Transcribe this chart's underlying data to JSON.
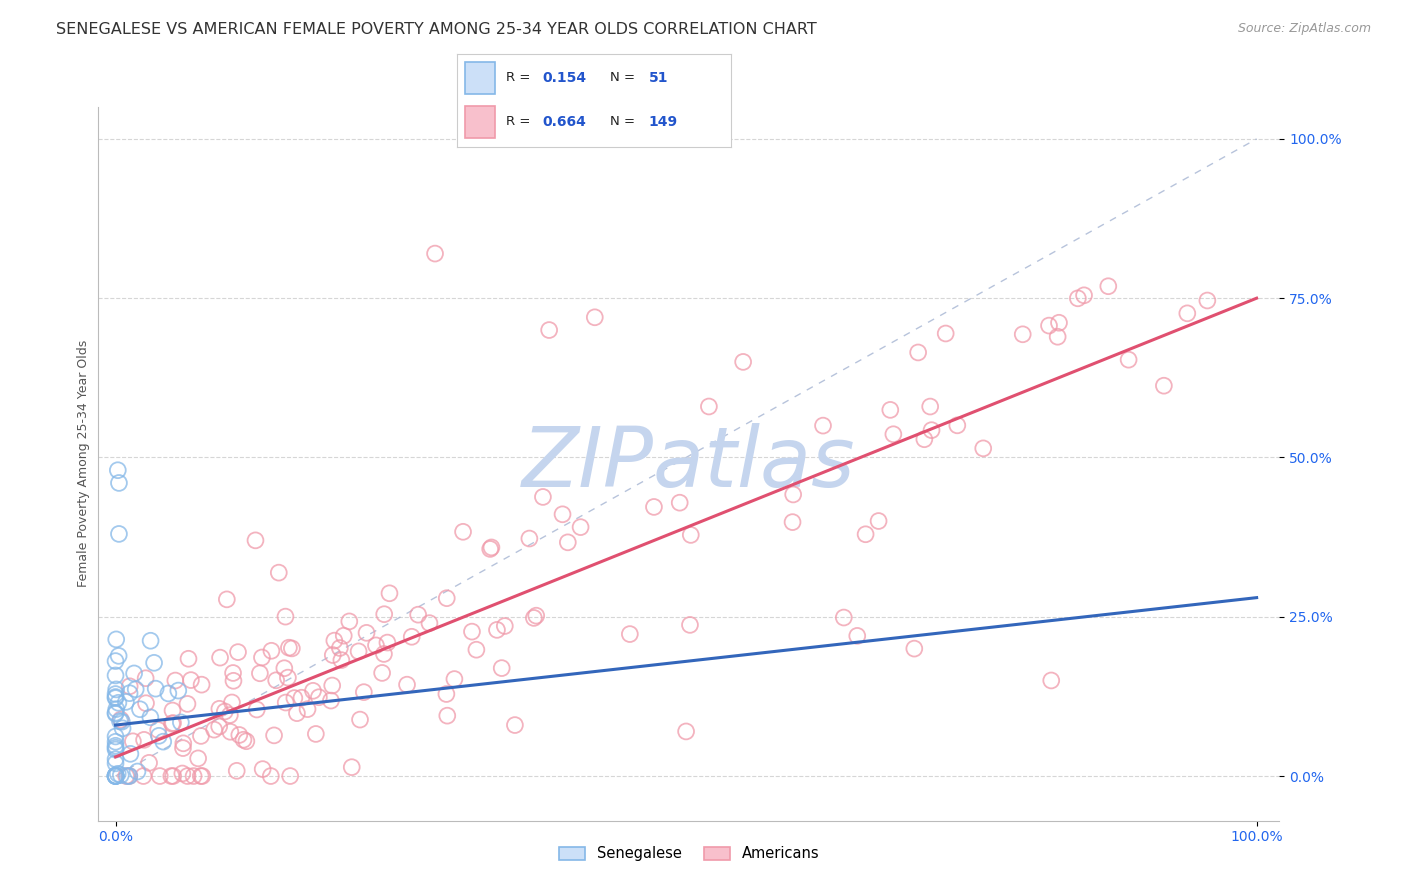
{
  "title": "SENEGALESE VS AMERICAN FEMALE POVERTY AMONG 25-34 YEAR OLDS CORRELATION CHART",
  "source": "Source: ZipAtlas.com",
  "ylabel": "Female Poverty Among 25-34 Year Olds",
  "ytick_labels": [
    "0.0%",
    "25.0%",
    "50.0%",
    "75.0%",
    "100.0%"
  ],
  "ytick_values": [
    0.0,
    0.25,
    0.5,
    0.75,
    1.0
  ],
  "xtick_labels": [
    "0.0%",
    "100.0%"
  ],
  "xtick_values": [
    0.0,
    1.0
  ],
  "senegalese_color": "#85b8e8",
  "americans_color": "#f09aaa",
  "senegalese_line_color": "#3366bb",
  "americans_line_color": "#e05070",
  "diagonal_color": "#99aacc",
  "background_color": "#ffffff",
  "watermark_color": "#c5d5ee",
  "title_fontsize": 11.5,
  "source_fontsize": 9,
  "axis_label_fontsize": 9,
  "tick_label_fontsize": 10,
  "legend_R1": "0.154",
  "legend_N1": "51",
  "legend_R2": "0.664",
  "legend_N2": "149",
  "legend_label1": "Senegalese",
  "legend_label2": "Americans"
}
